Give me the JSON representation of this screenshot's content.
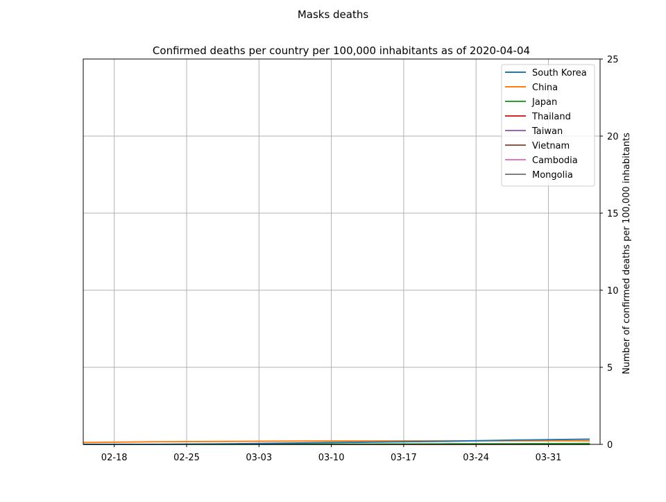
{
  "figure": {
    "suptitle": "Masks deaths"
  },
  "chart_data": {
    "type": "line",
    "title": "Confirmed deaths per country per 100,000 inhabitants as of 2020-04-04",
    "xlabel": "",
    "ylabel": "Number of confirmed deaths per 100,000 inhabitants",
    "x": [
      "2020-02-15",
      "2020-02-22",
      "2020-02-29",
      "2020-03-07",
      "2020-03-14",
      "2020-03-21",
      "2020-03-28",
      "2020-04-04"
    ],
    "xlim": [
      "2020-02-15",
      "2020-04-05"
    ],
    "ylim": [
      0,
      25
    ],
    "yaxis_side": "right",
    "xticks": [
      {
        "date": "2020-02-18",
        "label": "02-18"
      },
      {
        "date": "2020-02-25",
        "label": "02-25"
      },
      {
        "date": "2020-03-03",
        "label": "03-03"
      },
      {
        "date": "2020-03-10",
        "label": "03-10"
      },
      {
        "date": "2020-03-17",
        "label": "03-17"
      },
      {
        "date": "2020-03-24",
        "label": "03-24"
      },
      {
        "date": "2020-03-31",
        "label": "03-31"
      }
    ],
    "yticks": [
      0,
      5,
      10,
      15,
      20,
      25
    ],
    "grid": true,
    "legend_position": "top-right",
    "series": [
      {
        "name": "South Korea",
        "color": "#1f77b4",
        "values": [
          0.0,
          0.0,
          0.03,
          0.09,
          0.15,
          0.2,
          0.28,
          0.34
        ]
      },
      {
        "name": "China",
        "color": "#ff7f0e",
        "values": [
          0.12,
          0.17,
          0.19,
          0.21,
          0.22,
          0.23,
          0.23,
          0.23
        ]
      },
      {
        "name": "Japan",
        "color": "#2ca02c",
        "values": [
          0.0,
          0.0,
          0.0,
          0.01,
          0.02,
          0.03,
          0.04,
          0.06
        ]
      },
      {
        "name": "Thailand",
        "color": "#d62728",
        "values": [
          0.0,
          0.0,
          0.0,
          0.0,
          0.0,
          0.0,
          0.01,
          0.03
        ]
      },
      {
        "name": "Taiwan",
        "color": "#9467bd",
        "values": [
          0.0,
          0.0,
          0.0,
          0.0,
          0.0,
          0.01,
          0.02,
          0.02
        ]
      },
      {
        "name": "Vietnam",
        "color": "#8c564b",
        "values": [
          0.0,
          0.0,
          0.0,
          0.0,
          0.0,
          0.0,
          0.0,
          0.0
        ]
      },
      {
        "name": "Cambodia",
        "color": "#e377c2",
        "values": [
          0.0,
          0.0,
          0.0,
          0.0,
          0.0,
          0.0,
          0.0,
          0.0
        ]
      },
      {
        "name": "Mongolia",
        "color": "#7f7f7f",
        "values": [
          0.0,
          0.0,
          0.0,
          0.0,
          0.0,
          0.0,
          0.0,
          0.0
        ]
      }
    ]
  }
}
